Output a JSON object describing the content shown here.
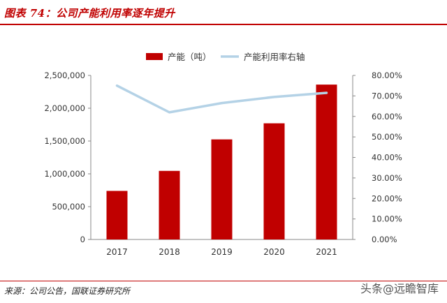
{
  "figure": {
    "title": "图表 74：公司产能利用率逐年提升",
    "source": "来源：公司公告，国联证券研究所",
    "watermark_left": "头条",
    "watermark_right": "远瞻智库",
    "watermark_at": "@"
  },
  "chart_data": {
    "type": "bar",
    "categories": [
      "2017",
      "2018",
      "2019",
      "2020",
      "2021"
    ],
    "series": [
      {
        "name": "产能（吨）",
        "type": "bar",
        "axis": "left",
        "color": "#c00000",
        "values": [
          740000,
          1045000,
          1525000,
          1770000,
          2360000
        ]
      },
      {
        "name": "产能利用率右轴",
        "type": "line",
        "axis": "right",
        "color": "#b4d2e6",
        "values": [
          75.0,
          62.0,
          66.5,
          69.5,
          71.5
        ]
      }
    ],
    "y_left": {
      "min": 0,
      "max": 2500000,
      "ticks": [
        "0",
        "500,000",
        "1,000,000",
        "1,500,000",
        "2,000,000",
        "2,500,000"
      ]
    },
    "y_right": {
      "min": 0,
      "max": 80,
      "ticks": [
        "0.00%",
        "10.00%",
        "20.00%",
        "30.00%",
        "40.00%",
        "50.00%",
        "60.00%",
        "70.00%",
        "80.00%"
      ]
    },
    "legend_position": "top-center",
    "grid": false
  }
}
